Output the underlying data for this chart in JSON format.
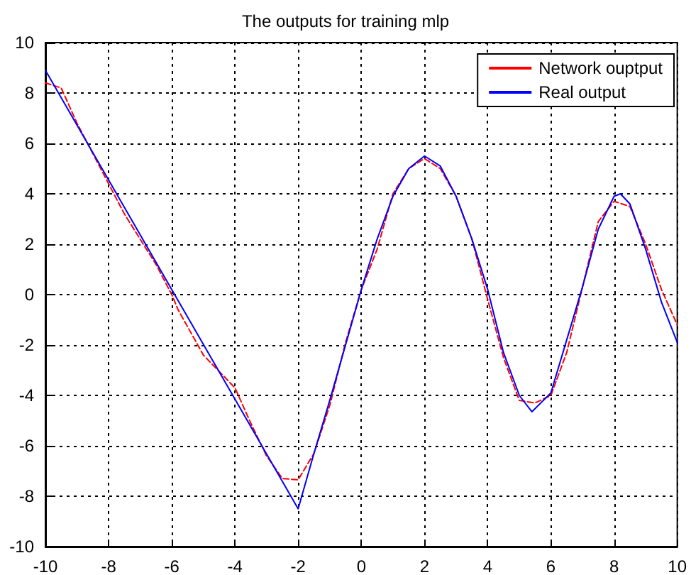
{
  "chart_data": {
    "type": "line",
    "title": "The outputs for training mlp",
    "xlim": [
      -10,
      10
    ],
    "xticks": [
      -10,
      -8,
      -6,
      -4,
      -2,
      0,
      2,
      4,
      6,
      8,
      10
    ],
    "ylim": [
      -10,
      10
    ],
    "yticks": [
      -10,
      -8,
      -6,
      -4,
      -2,
      0,
      2,
      4,
      6,
      8,
      10
    ],
    "grid": true,
    "legend": "top right",
    "marker": "none",
    "series": [
      {
        "name": "Network ouptput",
        "color": "#ff0000",
        "line_style": "dashed",
        "x": [
          -10,
          -9.5,
          -9,
          -8.5,
          -8,
          -7.5,
          -7,
          -6.5,
          -6,
          -5.8,
          -5,
          -4,
          -3.5,
          -3,
          -2.5,
          -2,
          -1.5,
          -1,
          -0.5,
          0,
          0.5,
          1,
          1.5,
          2,
          2.5,
          3,
          3.5,
          4,
          4.5,
          5,
          5.5,
          6,
          6.5,
          7,
          7.5,
          8,
          8.5,
          9,
          9.5,
          10
        ],
        "values": [
          8.4,
          8.2,
          6.8,
          5.6,
          4.4,
          3.2,
          2.2,
          1.2,
          0,
          -0.6,
          -2.4,
          -3.7,
          -5.1,
          -6.4,
          -7.3,
          -7.35,
          -6.3,
          -4.4,
          -1.9,
          0.2,
          1.8,
          4.0,
          5.0,
          5.4,
          5.0,
          3.9,
          2.2,
          -0.2,
          -2.5,
          -4.2,
          -4.3,
          -4.0,
          -2.3,
          0.3,
          2.9,
          3.7,
          3.5,
          2.0,
          0.2,
          -1.2
        ]
      },
      {
        "name": "Real output",
        "color": "#0000ff",
        "line_style": "solid",
        "x": [
          -10,
          -8,
          -6,
          -4,
          -2,
          -1.5,
          -1,
          -0.5,
          0,
          0.5,
          1,
          1.5,
          2,
          2.5,
          3,
          3.5,
          4,
          4.5,
          5,
          5.4,
          6,
          6.5,
          7,
          7.5,
          8,
          8.2,
          8.5,
          9,
          9.5,
          10
        ],
        "values": [
          8.9,
          4.55,
          0.2,
          -4.15,
          -8.5,
          -6.3,
          -4.2,
          -2,
          0.2,
          2.2,
          3.9,
          5.0,
          5.5,
          5.1,
          3.9,
          2.2,
          0.2,
          -2.3,
          -4.0,
          -4.65,
          -3.9,
          -1.8,
          0.3,
          2.6,
          3.9,
          4.0,
          3.6,
          1.8,
          -0.3,
          -1.9
        ]
      }
    ]
  }
}
